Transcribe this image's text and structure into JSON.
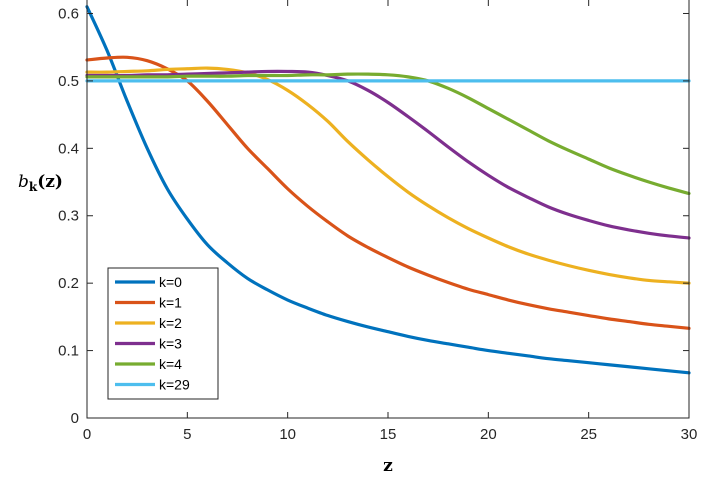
{
  "chart_data": {
    "type": "line",
    "xlabel": "z",
    "ylabel_main": "b",
    "ylabel_sub": "k",
    "ylabel_arg": "(z)",
    "xlim": [
      0,
      30
    ],
    "ylim": [
      0,
      0.62
    ],
    "xticks": [
      0,
      5,
      10,
      15,
      20,
      25,
      30
    ],
    "yticks": [
      0,
      0.1,
      0.2,
      0.3,
      0.4,
      0.5,
      0.6
    ],
    "ytick_labels": [
      "0",
      "0.1",
      "0.2",
      "0.3",
      "0.4",
      "0.5",
      "0.6"
    ],
    "x": [
      0,
      1,
      2,
      3,
      4,
      5,
      6,
      7,
      8,
      9,
      10,
      11,
      12,
      13,
      14,
      15,
      16,
      17,
      18,
      19,
      20,
      21,
      22,
      23,
      24,
      25,
      26,
      27,
      28,
      29,
      30
    ],
    "legend_position": "bottom-left",
    "series": [
      {
        "name": "k=0",
        "color": "#0072BD",
        "values": [
          0.61,
          0.545,
          0.47,
          0.4,
          0.34,
          0.295,
          0.257,
          0.23,
          0.207,
          0.19,
          0.175,
          0.163,
          0.152,
          0.143,
          0.135,
          0.128,
          0.121,
          0.115,
          0.11,
          0.105,
          0.1,
          0.096,
          0.092,
          0.088,
          0.085,
          0.082,
          0.079,
          0.076,
          0.073,
          0.07,
          0.067
        ]
      },
      {
        "name": "k=1",
        "color": "#D95319",
        "values": [
          0.531,
          0.534,
          0.535,
          0.53,
          0.518,
          0.5,
          0.47,
          0.435,
          0.4,
          0.37,
          0.34,
          0.314,
          0.291,
          0.27,
          0.253,
          0.238,
          0.224,
          0.212,
          0.201,
          0.191,
          0.183,
          0.175,
          0.168,
          0.162,
          0.157,
          0.152,
          0.147,
          0.143,
          0.139,
          0.136,
          0.133
        ]
      },
      {
        "name": "k=2",
        "color": "#EDB120",
        "values": [
          0.513,
          0.513,
          0.514,
          0.515,
          0.517,
          0.518,
          0.519,
          0.517,
          0.512,
          0.502,
          0.486,
          0.465,
          0.44,
          0.41,
          0.383,
          0.358,
          0.335,
          0.315,
          0.297,
          0.281,
          0.267,
          0.254,
          0.243,
          0.234,
          0.226,
          0.219,
          0.213,
          0.208,
          0.204,
          0.202,
          0.2
        ]
      },
      {
        "name": "k=3",
        "color": "#7E2F8E",
        "values": [
          0.508,
          0.508,
          0.508,
          0.509,
          0.509,
          0.51,
          0.511,
          0.512,
          0.513,
          0.514,
          0.514,
          0.513,
          0.508,
          0.5,
          0.486,
          0.468,
          0.447,
          0.425,
          0.402,
          0.38,
          0.36,
          0.342,
          0.327,
          0.313,
          0.302,
          0.293,
          0.285,
          0.279,
          0.274,
          0.27,
          0.267
        ]
      },
      {
        "name": "k=4",
        "color": "#77AC30",
        "values": [
          0.506,
          0.506,
          0.506,
          0.506,
          0.506,
          0.507,
          0.507,
          0.507,
          0.508,
          0.508,
          0.508,
          0.509,
          0.509,
          0.51,
          0.51,
          0.509,
          0.506,
          0.5,
          0.489,
          0.475,
          0.459,
          0.443,
          0.427,
          0.411,
          0.397,
          0.384,
          0.371,
          0.36,
          0.35,
          0.341,
          0.333
        ]
      },
      {
        "name": "k=29",
        "color": "#4DBEEE",
        "values": [
          0.5,
          0.5,
          0.5,
          0.5,
          0.5,
          0.5,
          0.5,
          0.5,
          0.5,
          0.5,
          0.5,
          0.5,
          0.5,
          0.5,
          0.5,
          0.5,
          0.5,
          0.5,
          0.5,
          0.5,
          0.5,
          0.5,
          0.5,
          0.5,
          0.5,
          0.5,
          0.5,
          0.5,
          0.5,
          0.5,
          0.5
        ]
      }
    ]
  }
}
